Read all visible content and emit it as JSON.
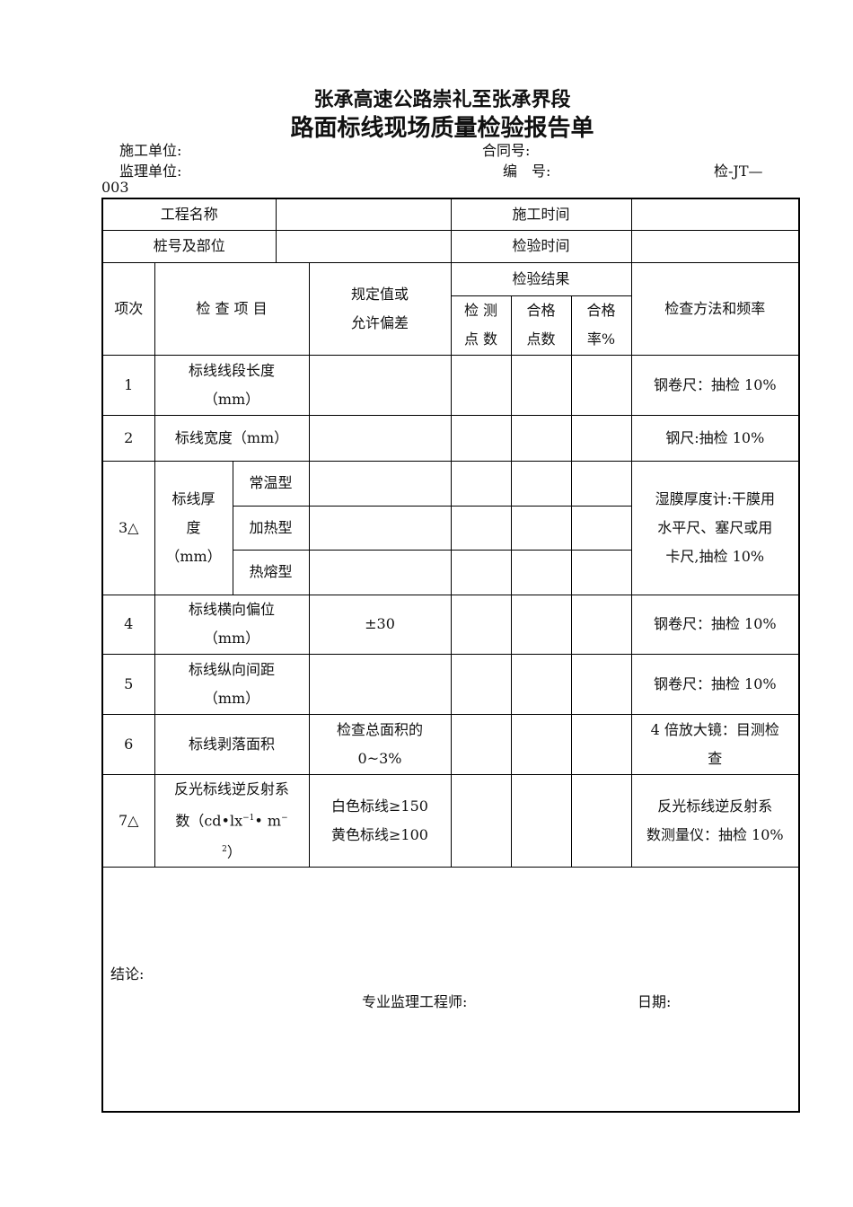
{
  "title_line1": "张承高速公路崇礼至张承界段",
  "title_line2": "路面标线现场质量检验报告单",
  "meta": {
    "construction_unit": "施工单位:",
    "contract_no": "合同号:",
    "supervision_unit": "监理单位:",
    "number_label": "编　号:",
    "form_code": "检-JT—",
    "form_code_cont": "003"
  },
  "info": {
    "project_name": "工程名称",
    "construction_time": "施工时间",
    "station": "桩号及部位",
    "inspection_time": "检验时间"
  },
  "header": {
    "seq": "项次",
    "item": "检 查 项 目",
    "spec_1": "规定值或",
    "spec_2": "允许偏差",
    "result": "检验结果",
    "points_1": "检 测",
    "points_2": "点 数",
    "pass_points_1": "合格",
    "pass_points_2": "点数",
    "pass_rate_1": "合格",
    "pass_rate_2": "率%",
    "method": "检查方法和频率"
  },
  "rows": [
    {
      "seq": "1",
      "item_1": "标线线段长度",
      "item_2": "（mm）",
      "spec": "",
      "method": "钢卷尺：抽检 10%"
    },
    {
      "seq": "2",
      "item_1": "标线宽度（mm）",
      "spec": "",
      "method": "钢尺:抽检 10%"
    },
    {
      "seq": "3△",
      "item_1": "标线厚",
      "item_2": "度",
      "item_3": "（mm）",
      "sub": [
        "常温型",
        "加热型",
        "热熔型"
      ],
      "method_1": "湿膜厚度计:干膜用",
      "method_2": "水平尺、塞尺或用",
      "method_3": "卡尺,抽检 10%"
    },
    {
      "seq": "4",
      "item_1": "标线横向偏位",
      "item_2": "（mm）",
      "spec": "±30",
      "method": "钢卷尺：抽检 10%"
    },
    {
      "seq": "5",
      "item_1": "标线纵向间距",
      "item_2": "（mm）",
      "spec": "",
      "method": "钢卷尺：抽检 10%"
    },
    {
      "seq": "6",
      "item_1": "标线剥落面积",
      "spec_1": "检查总面积的",
      "spec_2": "0~3%",
      "method_1": "4 倍放大镜：目测检",
      "method_2": "查"
    },
    {
      "seq": "7△",
      "item_1": "反光标线逆反射系",
      "item_2": "数（cd•lx",
      "item_2_sup": "−1",
      "item_2b": "• m",
      "item_2b_sup": "−",
      "item_3_sup": "2",
      "item_3": "）",
      "spec_1": "白色标线≥150",
      "spec_2": "黄色标线≥100",
      "method_1": "反光标线逆反射系",
      "method_2": "数测量仪：抽检 10%"
    }
  ],
  "footer": {
    "conclusion": "结论:",
    "engineer": "专业监理工程师:",
    "date": "日期:"
  }
}
